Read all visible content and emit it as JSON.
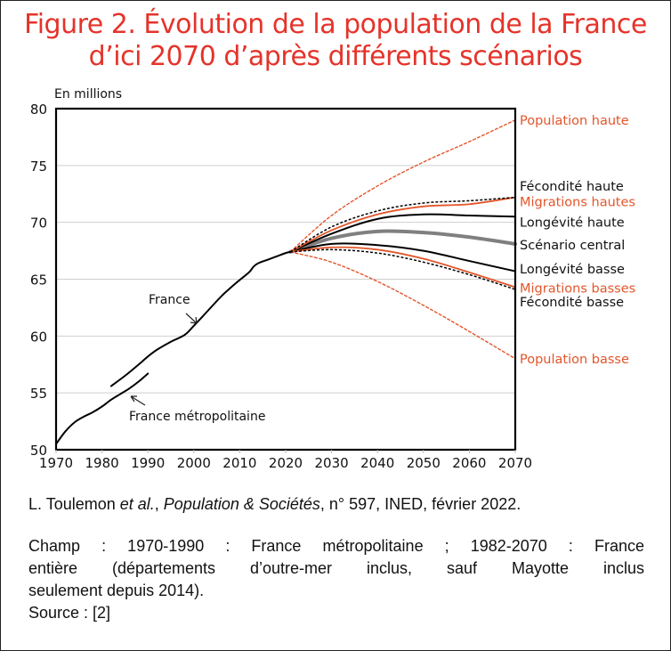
{
  "figure": {
    "title_line1": "Figure 2. Évolution de la population de la France",
    "title_line2": "d’ici 2070 d’après différents scénarios",
    "title_color": "#e5332a"
  },
  "citation": {
    "author": "L. Toulemon ",
    "etal": "et al.",
    "sep": ", ",
    "journal": "Population & Sociétés",
    "rest": ", n° 597, INED, février 2022."
  },
  "notes": {
    "line1": "Champ : 1970-1990 : France métropolitaine ; 1982-2070 : France",
    "line2": "entière (départements d’outre-mer inclus, sauf Mayotte inclus",
    "line3": "seulement depuis 2014).",
    "line4": "Source : [2]"
  },
  "chart_data": {
    "type": "line",
    "title": "Évolution de la population de la France d’ici 2070 d’après différents scénarios",
    "ylabel": "En millions",
    "xlabel": "",
    "xlim": [
      1970,
      2070
    ],
    "ylim": [
      50,
      80
    ],
    "xticks": [
      1970,
      1980,
      1990,
      2000,
      2010,
      2020,
      2030,
      2040,
      2050,
      2060,
      2070
    ],
    "yticks": [
      50,
      55,
      60,
      65,
      70,
      75,
      80
    ],
    "grid": "horizontal",
    "annotations": [
      {
        "text": "France",
        "points_to": "France",
        "at": [
          1990,
          62.5
        ]
      },
      {
        "text": "France métropolitaine",
        "points_to": "France métropolitaine",
        "at": [
          1986,
          53
        ]
      }
    ],
    "series": [
      {
        "name": "France métropolitaine",
        "color": "#000000",
        "style": "solid",
        "labeled": false,
        "x": [
          1970,
          1972,
          1974,
          1976,
          1978,
          1980,
          1982,
          1984,
          1986,
          1988,
          1990
        ],
        "y": [
          50.5,
          51.6,
          52.4,
          52.9,
          53.3,
          53.8,
          54.4,
          54.9,
          55.4,
          56.0,
          56.7
        ]
      },
      {
        "name": "France",
        "color": "#000000",
        "style": "solid",
        "labeled": false,
        "x": [
          1982,
          1985,
          1988,
          1990,
          1992,
          1995,
          1998,
          2000,
          2003,
          2006,
          2009,
          2012,
          2013,
          2014,
          2016,
          2018,
          2020,
          2021
        ],
        "y": [
          55.6,
          56.5,
          57.5,
          58.2,
          58.8,
          59.5,
          60.1,
          60.9,
          62.2,
          63.5,
          64.6,
          65.6,
          66.1,
          66.4,
          66.7,
          67.0,
          67.3,
          67.4
        ]
      },
      {
        "name": "Population haute",
        "color": "#e2562b",
        "style": "dashed-thin",
        "x": [
          2021,
          2030,
          2040,
          2050,
          2060,
          2070
        ],
        "y": [
          67.4,
          70.6,
          73.2,
          75.3,
          77.1,
          79.0
        ]
      },
      {
        "name": "Fécondité haute",
        "color": "#000000",
        "style": "dashed",
        "x": [
          2021,
          2030,
          2040,
          2050,
          2060,
          2070
        ],
        "y": [
          67.4,
          69.6,
          71.0,
          71.7,
          71.9,
          72.2
        ]
      },
      {
        "name": "Migrations hautes",
        "color": "#e2562b",
        "style": "solid",
        "x": [
          2021,
          2030,
          2040,
          2050,
          2060,
          2070
        ],
        "y": [
          67.4,
          69.3,
          70.7,
          71.4,
          71.6,
          72.2
        ]
      },
      {
        "name": "Longévité haute",
        "color": "#000000",
        "style": "solid",
        "x": [
          2021,
          2030,
          2040,
          2050,
          2060,
          2070
        ],
        "y": [
          67.4,
          69.0,
          70.3,
          70.7,
          70.6,
          70.5
        ]
      },
      {
        "name": "Scénario central",
        "color": "#808080",
        "style": "thick",
        "x": [
          2021,
          2030,
          2040,
          2050,
          2060,
          2070
        ],
        "y": [
          67.4,
          68.6,
          69.2,
          69.1,
          68.7,
          68.1
        ]
      },
      {
        "name": "Longévité basse",
        "color": "#000000",
        "style": "solid",
        "x": [
          2021,
          2030,
          2040,
          2050,
          2060,
          2070
        ],
        "y": [
          67.4,
          68.1,
          68.0,
          67.5,
          66.6,
          65.7
        ]
      },
      {
        "name": "Migrations basses",
        "color": "#e2562b",
        "style": "solid",
        "x": [
          2021,
          2030,
          2040,
          2050,
          2060,
          2070
        ],
        "y": [
          67.4,
          67.8,
          67.6,
          66.8,
          65.6,
          64.3
        ]
      },
      {
        "name": "Fécondité basse",
        "color": "#000000",
        "style": "dashed",
        "x": [
          2021,
          2030,
          2040,
          2050,
          2060,
          2070
        ],
        "y": [
          67.4,
          67.6,
          67.3,
          66.5,
          65.4,
          64.1
        ]
      },
      {
        "name": "Population basse",
        "color": "#e2562b",
        "style": "dashed-thin",
        "x": [
          2021,
          2030,
          2040,
          2050,
          2060,
          2070
        ],
        "y": [
          67.4,
          66.5,
          64.8,
          62.7,
          60.4,
          58.0
        ]
      }
    ],
    "legend": {
      "placement": "right-of-plot",
      "entries": [
        {
          "text": "Population haute",
          "color": "#e2562b",
          "y": 79.0
        },
        {
          "text": "Fécondité haute",
          "color": "#111111",
          "y": 73.2
        },
        {
          "text": "Migrations hautes",
          "color": "#e2562b",
          "y": 71.8
        },
        {
          "text": "Longévité haute",
          "color": "#111111",
          "y": 70.0
        },
        {
          "text": "Scénario central",
          "color": "#111111",
          "y": 68.0
        },
        {
          "text": "Longévité basse",
          "color": "#111111",
          "y": 65.9
        },
        {
          "text": "Migrations basses",
          "color": "#e2562b",
          "y": 64.2
        },
        {
          "text": "Fécondité basse",
          "color": "#111111",
          "y": 63.0
        },
        {
          "text": "Population basse",
          "color": "#e2562b",
          "y": 58.0
        }
      ]
    }
  }
}
